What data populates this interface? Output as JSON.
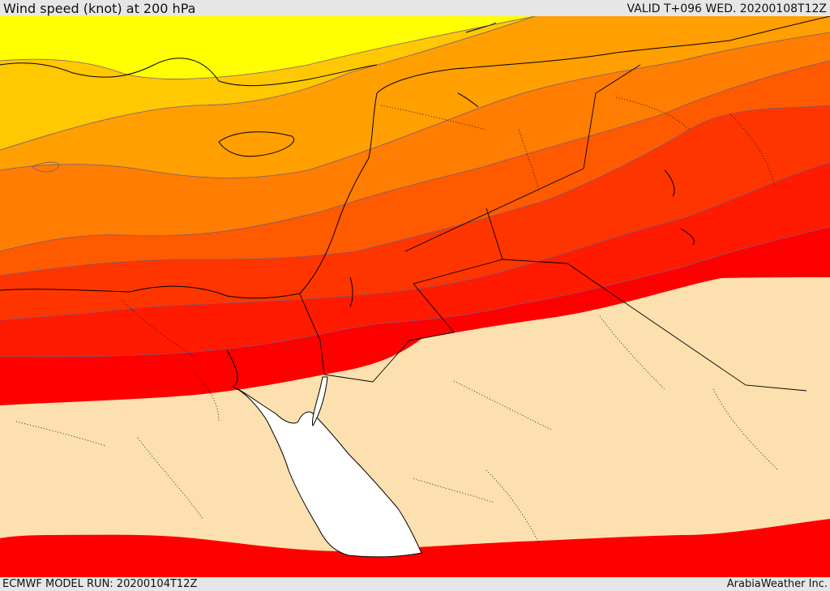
{
  "header": {
    "title": "Wind speed (knot) at 200 hPa",
    "valid": "VALID T+096 WED. 20200108T12Z"
  },
  "footer": {
    "model_run": "ECMWF MODEL RUN: 20200104T12Z",
    "credit": "ArabiaWeather Inc."
  },
  "map": {
    "variable": "wind speed",
    "level": "200 hPa",
    "units": "knot",
    "colors": {
      "band_yellow": "#ffff00",
      "band_gold": "#ffc800",
      "band_amber": "#ff9f00",
      "band_orange": "#ff7d00",
      "band_dark_orange": "#ff5a00",
      "band_red_orange": "#ff3500",
      "band_scarlet": "#ff1a00",
      "band_red": "#ff0000",
      "low_speed_fill": "#fde0b0",
      "sea_white": "#ffffff",
      "contour_line": "#7a5a80",
      "coastline": "#000000"
    }
  }
}
